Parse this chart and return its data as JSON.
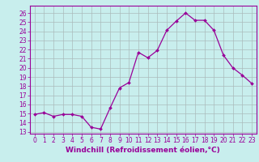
{
  "x": [
    0,
    1,
    2,
    3,
    4,
    5,
    6,
    7,
    8,
    9,
    10,
    11,
    12,
    13,
    14,
    15,
    16,
    17,
    18,
    19,
    20,
    21,
    22,
    23
  ],
  "y": [
    14.9,
    15.1,
    14.7,
    14.9,
    14.9,
    14.7,
    13.5,
    13.3,
    15.6,
    17.8,
    18.4,
    21.7,
    21.1,
    21.9,
    24.1,
    25.1,
    26.0,
    25.2,
    25.2,
    24.1,
    21.4,
    20.0,
    19.2,
    18.3
  ],
  "line_color": "#990099",
  "marker": "D",
  "marker_size": 2.0,
  "bg_color": "#c8eeed",
  "grid_color": "#aabbbb",
  "xlabel": "Windchill (Refroidissement éolien,°C)",
  "ylabel_ticks": [
    13,
    14,
    15,
    16,
    17,
    18,
    19,
    20,
    21,
    22,
    23,
    24,
    25,
    26
  ],
  "ylim": [
    12.8,
    26.8
  ],
  "xlim": [
    -0.5,
    23.5
  ],
  "xtick_labels": [
    "0",
    "1",
    "2",
    "3",
    "4",
    "5",
    "6",
    "7",
    "8",
    "9",
    "10",
    "11",
    "12",
    "13",
    "14",
    "15",
    "16",
    "17",
    "18",
    "19",
    "20",
    "21",
    "22",
    "23"
  ],
  "tick_fontsize": 5.5,
  "label_fontsize": 6.5
}
